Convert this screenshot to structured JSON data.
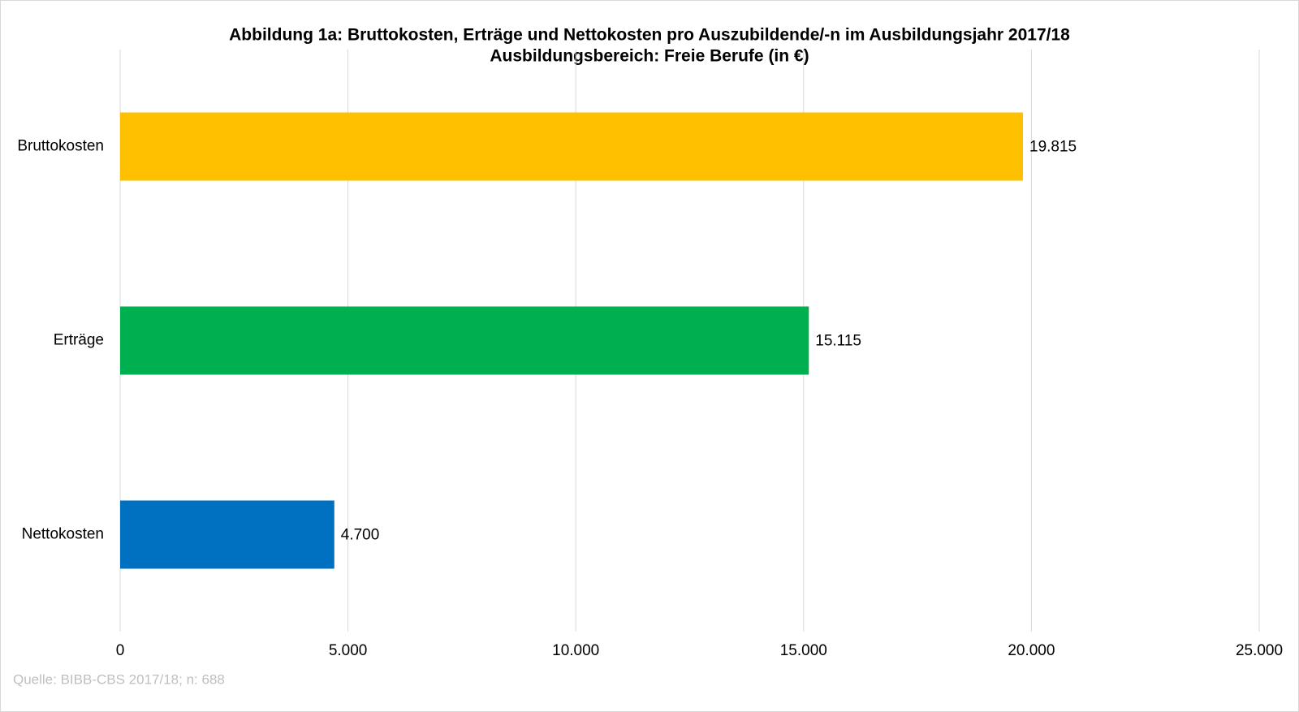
{
  "chart_data": {
    "type": "barh",
    "title": "Abbildung 1a:  Bruttokosten, Erträge und Nettokosten pro Auszubildende/-n im Ausbildungsjahr 2017/18",
    "subtitle": "Ausbildungsbereich: Freie Berufe (in €)",
    "categories": [
      "Bruttokosten",
      "Erträge",
      "Nettokosten"
    ],
    "values": [
      19815,
      15115,
      4700
    ],
    "value_labels": [
      "19.815",
      "15.115",
      "4.700"
    ],
    "colors": [
      "#ffc000",
      "#00b050",
      "#0070c0"
    ],
    "xlim": [
      0,
      25000
    ],
    "xticks": [
      0,
      {
        "value": 5000,
        "label": "5.000"
      },
      {
        "value": 10000,
        "label": "10.000"
      },
      {
        "value": 15000,
        "label": "15.000"
      },
      {
        "value": 20000,
        "label": "20.000"
      },
      {
        "value": 25000,
        "label": "25.000"
      }
    ],
    "grid": true,
    "source": "Quelle: BIBB-CBS 2017/18; n: 688"
  }
}
